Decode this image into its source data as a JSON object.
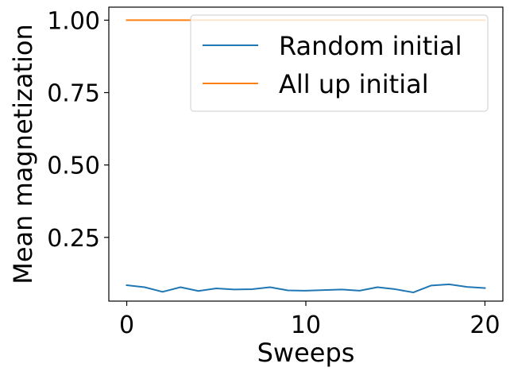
{
  "chart_data": {
    "type": "line",
    "title": "",
    "xlabel": "Sweeps",
    "ylabel": "Mean magnetization",
    "xlim": [
      -1,
      21
    ],
    "ylim": [
      0.03,
      1.045
    ],
    "xticks": [
      0,
      10,
      20
    ],
    "xtick_labels": [
      "0",
      "10",
      "20"
    ],
    "yticks": [
      0.25,
      0.5,
      0.75,
      1.0
    ],
    "ytick_labels": [
      "0.25",
      "0.50",
      "0.75",
      "1.00"
    ],
    "grid": false,
    "legend_position": "top-right",
    "x": [
      0,
      1,
      2,
      3,
      4,
      5,
      6,
      7,
      8,
      9,
      10,
      11,
      12,
      13,
      14,
      15,
      16,
      17,
      18,
      19,
      20
    ],
    "series": [
      {
        "name": "Random initial",
        "color": "#1f77b4",
        "values": [
          0.085,
          0.078,
          0.062,
          0.078,
          0.065,
          0.074,
          0.07,
          0.071,
          0.078,
          0.067,
          0.066,
          0.068,
          0.07,
          0.066,
          0.078,
          0.071,
          0.06,
          0.084,
          0.088,
          0.079,
          0.075
        ]
      },
      {
        "name": "All up initial",
        "color": "#ff7f0e",
        "values": [
          1.0,
          1.0,
          1.0,
          1.0,
          1.0,
          1.0,
          1.0,
          1.0,
          1.0,
          1.0,
          1.0,
          1.0,
          1.0,
          1.0,
          1.0,
          1.0,
          1.0,
          1.0,
          1.0,
          1.0,
          1.0
        ]
      }
    ]
  }
}
